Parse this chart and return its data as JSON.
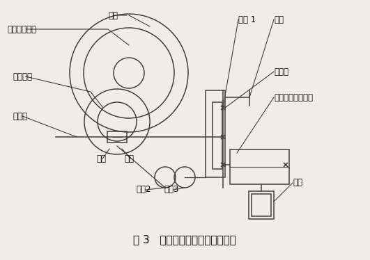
{
  "bg_color": "#f0ede8",
  "line_color": "#404040",
  "title": "图 3   改进后的电子送经机构简图",
  "font_size": 8.5,
  "title_font_size": 11,
  "fig_width": 5.31,
  "fig_height": 3.74,
  "dpi": 100,
  "xlim": [
    0,
    531
  ],
  "ylim": [
    0,
    310
  ]
}
